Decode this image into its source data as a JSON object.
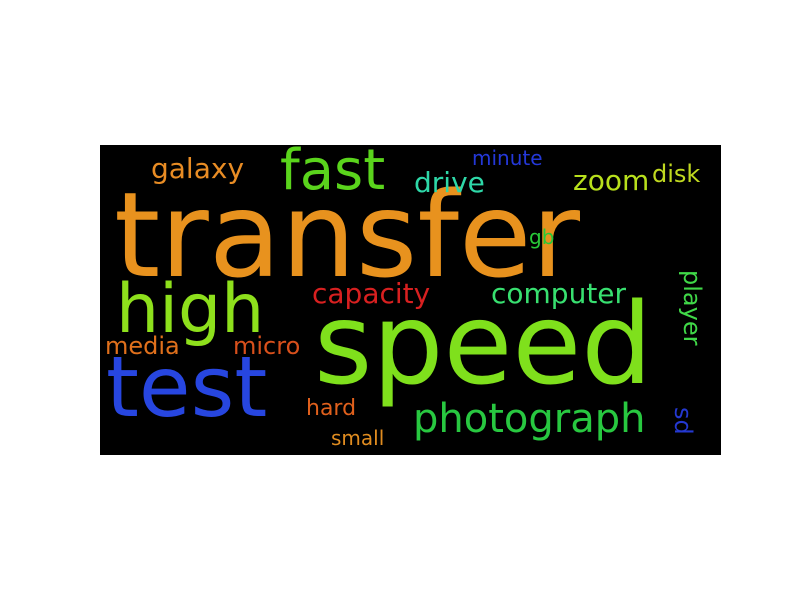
{
  "colors": {
    "background": "#000000",
    "page": "#ffffff"
  },
  "words": [
    {
      "text": "transfer",
      "color": "#e8921e"
    },
    {
      "text": "speed",
      "color": "#7fe01c"
    },
    {
      "text": "test",
      "color": "#2746e0"
    },
    {
      "text": "high",
      "color": "#8ee01c"
    },
    {
      "text": "fast",
      "color": "#5ad41c"
    },
    {
      "text": "photograph",
      "color": "#28c840"
    },
    {
      "text": "capacity",
      "color": "#d82020"
    },
    {
      "text": "computer",
      "color": "#38e070"
    },
    {
      "text": "galaxy",
      "color": "#e88c24"
    },
    {
      "text": "drive",
      "color": "#2ed8a8"
    },
    {
      "text": "zoom",
      "color": "#b8e01c"
    },
    {
      "text": "disk",
      "color": "#c0d820"
    },
    {
      "text": "minute",
      "color": "#2438d8"
    },
    {
      "text": "gb",
      "color": "#28c838"
    },
    {
      "text": "media",
      "color": "#e0701c"
    },
    {
      "text": "micro",
      "color": "#d8501c"
    },
    {
      "text": "player",
      "color": "#40d848"
    },
    {
      "text": "hard",
      "color": "#e0601c"
    },
    {
      "text": "small",
      "color": "#e08c20"
    },
    {
      "text": "sd",
      "color": "#2438d0"
    }
  ]
}
